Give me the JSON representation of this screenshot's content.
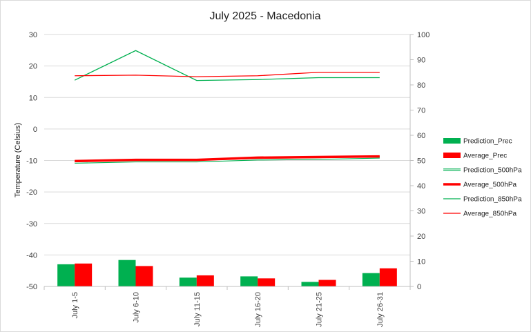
{
  "chart_data": {
    "type": "bar+line",
    "title": "July 2025 - Macedonia",
    "ylabel": "Temperature (Celsius)",
    "ylim": [
      -50,
      30
    ],
    "y_ticks": [
      30,
      20,
      10,
      0,
      -10,
      -20,
      -30,
      -40,
      -50
    ],
    "y2lim": [
      0,
      100
    ],
    "y2_ticks": [
      100,
      90,
      80,
      70,
      60,
      50,
      40,
      30,
      20,
      10,
      0
    ],
    "categories": [
      "July 1-5",
      "July 6-10",
      "July 11-15",
      "July 16-20",
      "July 21-25",
      "July 26-31"
    ],
    "bar_series": [
      {
        "name": "Prediction_Prec",
        "color": "#00b050",
        "values": [
          8.8,
          10.5,
          3.5,
          4.0,
          1.8,
          5.3
        ]
      },
      {
        "name": "Average_Prec",
        "color": "#ff0000",
        "values": [
          9.1,
          8.1,
          4.4,
          3.2,
          2.6,
          7.2
        ]
      }
    ],
    "line_series": [
      {
        "name": "Prediction_500hPa",
        "color": "#00b050",
        "style": "double",
        "values": [
          -10.6,
          -10.2,
          -10.2,
          -9.6,
          -9.4,
          -9.0
        ]
      },
      {
        "name": "Average_500hPa",
        "color": "#ff0000",
        "style": "thick",
        "values": [
          -10.2,
          -9.8,
          -9.8,
          -9.1,
          -8.9,
          -8.7
        ]
      },
      {
        "name": "Prediction_850hPa",
        "color": "#00b050",
        "style": "thin",
        "values": [
          15.5,
          24.9,
          15.4,
          15.7,
          16.3,
          16.3
        ]
      },
      {
        "name": "Average_850hPa",
        "color": "#ff0000",
        "style": "thin",
        "values": [
          16.9,
          17.1,
          16.6,
          16.9,
          18.0,
          18.0
        ]
      }
    ],
    "grid": "horizontal",
    "legend_position": "right"
  }
}
